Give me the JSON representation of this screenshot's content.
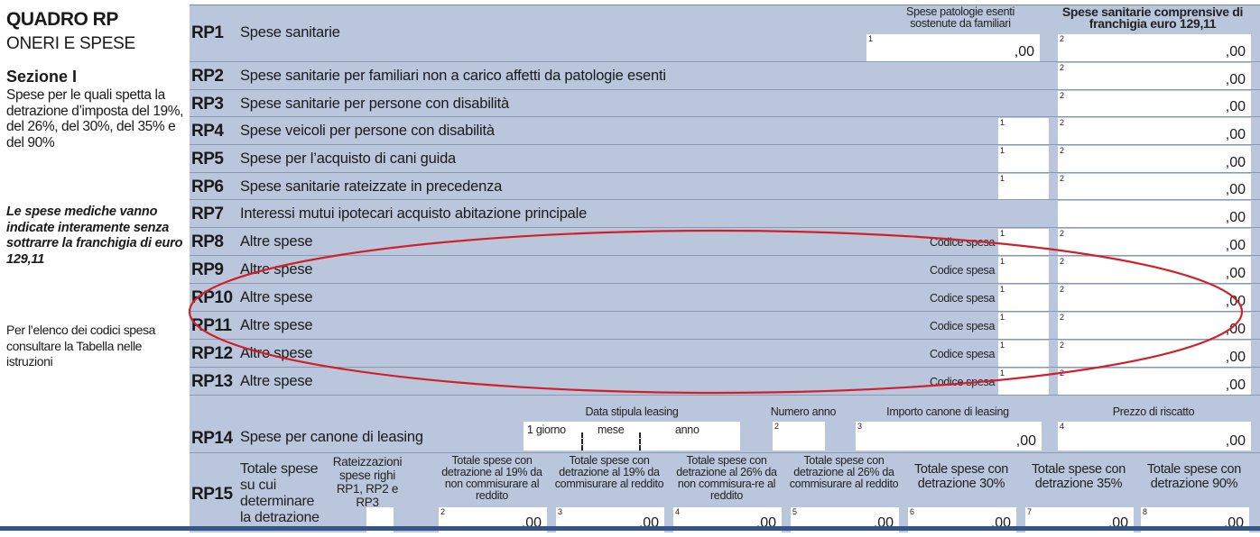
{
  "left": {
    "title": "QUADRO RP",
    "subtitle": "ONERI E SPESE",
    "section": "Sezione I",
    "section_desc": "Spese per le quali spetta la detrazione d’imposta del 19%, del 26%, del 30%, del 35% e del 90%",
    "note_italic": "Le spese mediche vanno indicate interamente senza sottrarre la franchigia di euro 129,11",
    "note_codes": "Per l’elenco dei codici spesa consultare la Tabella nelle istruzioni"
  },
  "headers": {
    "col1": "Spese patologie esenti sostenute da familiari",
    "col2": "Spese sanitarie comprensive di franchigia euro 129,11"
  },
  "rows": [
    {
      "code": "RP1",
      "label": "Spese sanitarie",
      "n1": "1",
      "v1": ",00",
      "n2": "2",
      "v2": ",00"
    },
    {
      "code": "RP2",
      "label": "Spese sanitarie per familiari non a carico affetti da patologie esenti",
      "n2": "2",
      "v2": ",00"
    },
    {
      "code": "RP3",
      "label": "Spese sanitarie per persone con disabilità",
      "n2": "2",
      "v2": ",00"
    },
    {
      "code": "RP4",
      "label": "Spese veicoli per persone con disabilità",
      "n1": "1",
      "n2": "2",
      "v2": ",00"
    },
    {
      "code": "RP5",
      "label": "Spese per l’acquisto di cani guida",
      "n1": "1",
      "n2": "2",
      "v2": ",00"
    },
    {
      "code": "RP6",
      "label": "Spese sanitarie rateizzate in precedenza",
      "n1": "1",
      "n2": "2",
      "v2": ",00"
    },
    {
      "code": "RP7",
      "label": "Interessi mutui ipotecari acquisto abitazione principale",
      "v2": ",00"
    },
    {
      "code": "RP8",
      "label": "Altre spese",
      "codice": "Codice spesa",
      "n1": "1",
      "n2": "2",
      "v2": ",00"
    },
    {
      "code": "RP9",
      "label": "Altre spese",
      "codice": "Codice spesa",
      "n1": "1",
      "n2": "2",
      "v2": ",00"
    },
    {
      "code": "RP10",
      "label": "Altre spese",
      "codice": "Codice spesa",
      "n1": "1",
      "n2": "2",
      "v2": ",00"
    },
    {
      "code": "RP11",
      "label": "Altre spese",
      "codice": "Codice spesa",
      "n1": "1",
      "n2": "2",
      "v2": ",00"
    },
    {
      "code": "RP12",
      "label": "Altre spese",
      "codice": "Codice spesa",
      "n1": "1",
      "n2": "2",
      "v2": ",00"
    },
    {
      "code": "RP13",
      "label": "Altre spese",
      "codice": "Codice spesa",
      "n1": "1",
      "n2": "2",
      "v2": ",00"
    }
  ],
  "rp14": {
    "code": "RP14",
    "label": "Spese per canone di leasing",
    "date_header": "Data stipula leasing",
    "giorno": "1 giorno",
    "mese": "mese",
    "anno": "anno",
    "numero_anno": "Numero anno",
    "importo": "Importo canone di leasing",
    "prezzo": "Prezzo di riscatto",
    "n2": "2",
    "n3": "3",
    "n4": "4",
    "v3": ",00",
    "v4": ",00"
  },
  "rp15": {
    "code": "RP15",
    "label": "Totale spese su cui determinare la detrazione",
    "rate_label": "Rateizzazioni spese righi RP1, RP2 e RP3",
    "cols": [
      {
        "label": "Totale spese con detrazione al 19% da non commisurare al reddito",
        "n": "2",
        "v": ",00"
      },
      {
        "label": "Totale spese con detrazione al 19% da commisurare al reddito",
        "n": "3",
        "v": ",00"
      },
      {
        "label": "Totale spese con detrazione al 26% da non commisura-re al reddito",
        "n": "4",
        "v": ",00"
      },
      {
        "label": "Totale spese con detrazione al 26% da commisurare al reddito",
        "n": "5",
        "v": ",00"
      },
      {
        "label": "Totale spese con detrazione 30%",
        "n": "6",
        "v": ",00"
      },
      {
        "label": "Totale spese con detrazione 35%",
        "n": "7",
        "v": ",00"
      },
      {
        "label": "Totale spese con detrazione 90%",
        "n": "8",
        "v": ",00"
      }
    ]
  },
  "colors": {
    "form_bg": "#b9c6db",
    "ellipse": "#d0202a",
    "bar": "#33558a"
  }
}
